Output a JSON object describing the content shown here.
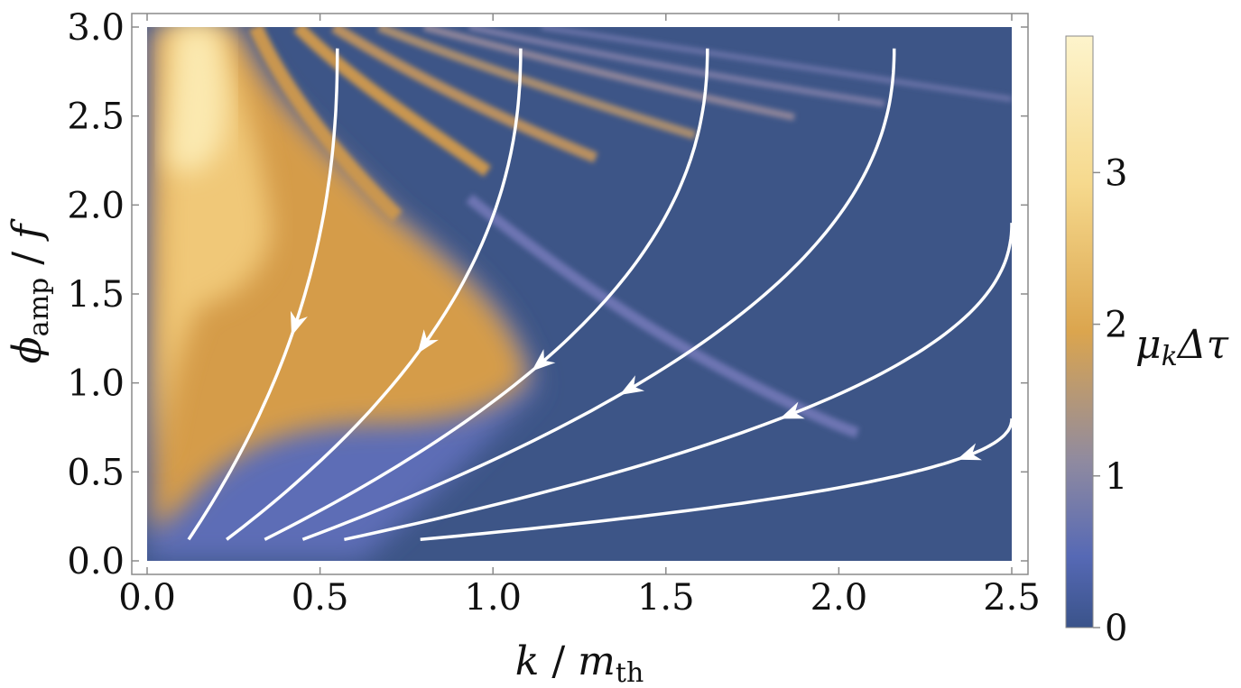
{
  "chart_data": {
    "type": "heatmap",
    "x": {
      "label_main": "k",
      "label_sep": " / ",
      "label_denom": "m",
      "label_denom_sub": "th",
      "range": [
        0,
        2.5
      ],
      "ticks": [
        "0.0",
        "0.5",
        "1.0",
        "1.5",
        "2.0",
        "2.5"
      ]
    },
    "y": {
      "label_main": "ϕ",
      "label_main_sub": "amp",
      "label_sep": " / ",
      "label_denom": "f",
      "range": [
        0,
        3.0
      ],
      "ticks": [
        "0.0",
        "0.5",
        "1.0",
        "1.5",
        "2.0",
        "2.5",
        "3.0"
      ]
    },
    "colorbar": {
      "label_main": "μ",
      "label_sub": "k",
      "label_rest": "Δτ",
      "range": [
        0,
        3.9
      ],
      "ticks": [
        "0",
        "1",
        "2",
        "3"
      ],
      "colormap": [
        "#3a538a",
        "#5669b5",
        "#8f8aa0",
        "#dba54e",
        "#f6d98d",
        "#fdf4cc"
      ]
    },
    "flow_lines": [
      {
        "k0": 0.12,
        "k_top": 0.55,
        "y_top": 2.88,
        "arrow_at": 1.3
      },
      {
        "k0": 0.23,
        "k_top": 1.08,
        "y_top": 2.88,
        "arrow_at": 1.2
      },
      {
        "k0": 0.34,
        "k_top": 1.62,
        "y_top": 2.88,
        "arrow_at": 1.1
      },
      {
        "k0": 0.45,
        "k_top": 2.16,
        "y_top": 2.88,
        "arrow_at": 0.95
      },
      {
        "k0": 0.57,
        "k_top": 2.5,
        "y_top": 1.9,
        "arrow_at": 0.8
      },
      {
        "k0": 0.79,
        "k_top": 2.5,
        "y_top": 0.8,
        "arrow_at": 0.58
      }
    ],
    "line_color": "#ffffff",
    "background_color": "#3d5587"
  }
}
